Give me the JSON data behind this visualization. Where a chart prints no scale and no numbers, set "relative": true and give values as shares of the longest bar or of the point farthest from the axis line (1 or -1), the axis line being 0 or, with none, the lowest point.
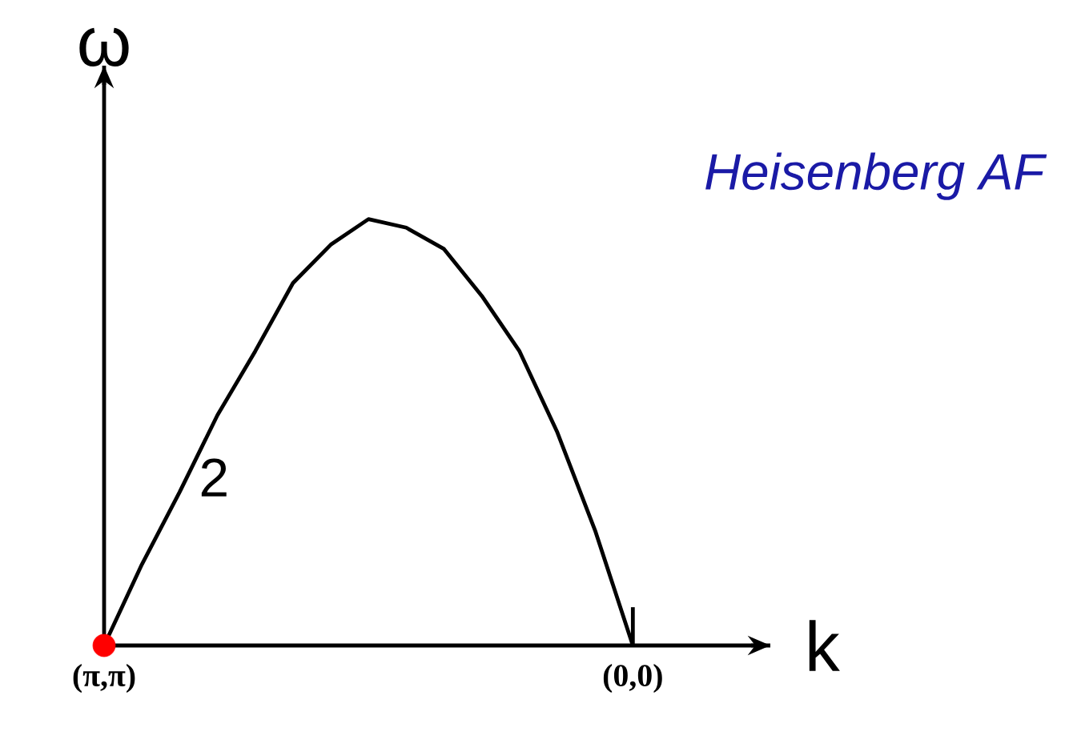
{
  "chart_data": {
    "type": "line",
    "relative": true,
    "xlabel": "k",
    "ylabel": "ω",
    "categories": [
      "(π,π)",
      null,
      null,
      null,
      null,
      null,
      null,
      null,
      null,
      null,
      null,
      null,
      null,
      null,
      "(0,0)"
    ],
    "annotations": [
      "Heisenberg AF",
      "2"
    ],
    "series": [
      {
        "color": "#000000",
        "marker": "none",
        "line_style": "solid",
        "values": [
          0,
          0.19,
          0.36,
          0.54,
          0.69,
          0.85,
          0.94,
          1,
          0.98,
          0.93,
          0.82,
          0.69,
          0.5,
          0.27,
          0
        ]
      },
      {
        "type": "scatter",
        "color": "#ff0000",
        "marker": "circle",
        "values": [
          0,
          null,
          null,
          null,
          null,
          null,
          null,
          null,
          null,
          null,
          null,
          null,
          null,
          null,
          null
        ]
      }
    ]
  }
}
